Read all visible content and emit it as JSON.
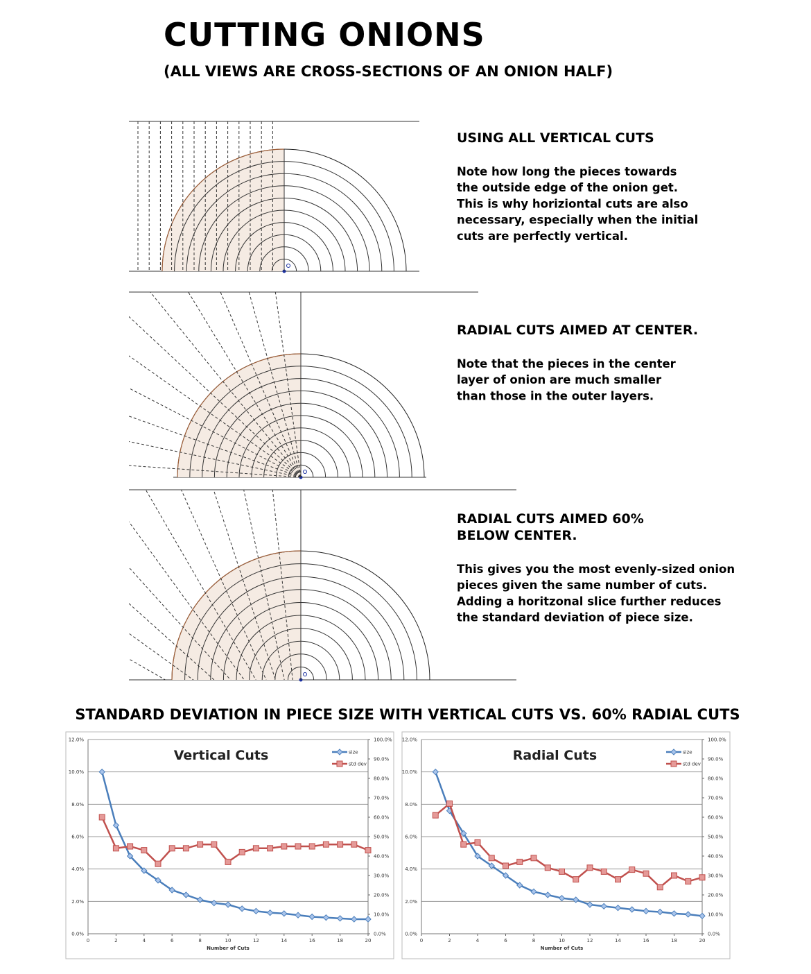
{
  "header": {
    "title": "CUTTING ONIONS",
    "subtitle": "(ALL VIEWS ARE CROSS-SECTIONS OF AN ONION HALF)"
  },
  "sections": [
    {
      "heading": [
        "USING ALL VERTICAL CUTS"
      ],
      "lines": [
        "Note how long the pieces towards",
        "the outside edge of the onion get.",
        "This is why horiziontal cuts are also",
        "necessary, especially when the initial",
        "cuts are perfectly vertical."
      ]
    },
    {
      "heading": [
        "RADIAL CUTS AIMED AT CENTER."
      ],
      "lines": [
        "Note that the pieces in the center",
        "layer of onion are much smaller",
        "than those in the outer layers."
      ]
    },
    {
      "heading": [
        "RADIAL CUTS AIMED 60%",
        "BELOW CENTER."
      ],
      "lines": [
        "This gives you the most evenly-sized onion",
        "pieces given the same number of cuts.",
        "Adding a horitzonal slice further reduces",
        "the standard deviation of piece size."
      ]
    }
  ],
  "charts_title": "STANDARD DEVIATION IN PIECE SIZE WITH VERTICAL CUTS VS. 60% RADIAL CUTS",
  "chart_data": [
    {
      "type": "line",
      "title": "Vertical Cuts",
      "x_label": "Number of Cuts",
      "x": [
        1,
        2,
        3,
        4,
        5,
        6,
        7,
        8,
        9,
        10,
        11,
        12,
        13,
        14,
        15,
        16,
        17,
        18,
        19,
        20
      ],
      "series": [
        {
          "name": "size",
          "color": "#4a7ebb",
          "marker": "diamond",
          "values": [
            10.0,
            6.7,
            4.8,
            3.9,
            3.3,
            2.7,
            2.4,
            2.1,
            1.9,
            1.8,
            1.55,
            1.4,
            1.3,
            1.25,
            1.15,
            1.05,
            1.0,
            0.95,
            0.9,
            0.9
          ]
        },
        {
          "name": "std dev",
          "color": "#c0504d",
          "marker": "square",
          "axis": "y2",
          "values": [
            60,
            44,
            45,
            43,
            36,
            44,
            44,
            46,
            46,
            37,
            42,
            44,
            44,
            45,
            45,
            45,
            46,
            46,
            46,
            43
          ]
        }
      ],
      "xlim": [
        0,
        20
      ],
      "xticks": [
        0,
        2,
        4,
        6,
        8,
        10,
        12,
        14,
        16,
        18,
        20
      ],
      "ylim": [
        0,
        12
      ],
      "yticks": [
        {
          "value": 0,
          "label": "0.0%"
        },
        {
          "value": 2,
          "label": "2.0%"
        },
        {
          "value": 4,
          "label": "4.0%"
        },
        {
          "value": 6,
          "label": "6.0%"
        },
        {
          "value": 8,
          "label": "8.0%"
        },
        {
          "value": 10,
          "label": "10.0%"
        },
        {
          "value": 12,
          "label": "12.0%"
        }
      ],
      "y2lim": [
        0,
        100
      ],
      "y2ticks": [
        {
          "value": 0,
          "label": "0.0%"
        },
        {
          "value": 10,
          "label": "10.0%"
        },
        {
          "value": 20,
          "label": "20.0%"
        },
        {
          "value": 30,
          "label": "30.0%"
        },
        {
          "value": 40,
          "label": "40.0%"
        },
        {
          "value": 50,
          "label": "50.0%"
        },
        {
          "value": 60,
          "label": "60.0%"
        },
        {
          "value": 70,
          "label": "70.0%"
        },
        {
          "value": 80,
          "label": "80.0%"
        },
        {
          "value": 90,
          "label": "90.0%"
        },
        {
          "value": 100,
          "label": "100.0%"
        }
      ],
      "grid": true,
      "legend": "top-right"
    },
    {
      "type": "line",
      "title": "Radial Cuts",
      "x_label": "Number of Cuts",
      "x": [
        1,
        2,
        3,
        4,
        5,
        6,
        7,
        8,
        9,
        10,
        11,
        12,
        13,
        14,
        15,
        16,
        17,
        18,
        19,
        20
      ],
      "series": [
        {
          "name": "size",
          "color": "#4a7ebb",
          "marker": "diamond",
          "values": [
            10.0,
            7.6,
            6.2,
            4.8,
            4.2,
            3.6,
            3.0,
            2.6,
            2.4,
            2.2,
            2.1,
            1.8,
            1.7,
            1.6,
            1.5,
            1.4,
            1.35,
            1.25,
            1.2,
            1.1
          ]
        },
        {
          "name": "std dev",
          "color": "#c0504d",
          "marker": "square",
          "axis": "y2",
          "values": [
            61,
            67,
            46,
            47,
            39,
            35,
            37,
            39,
            34,
            32,
            28,
            34,
            32,
            28,
            33,
            31,
            24,
            30,
            27,
            29
          ]
        }
      ],
      "xlim": [
        0,
        20
      ],
      "xticks": [
        0,
        2,
        4,
        6,
        8,
        10,
        12,
        14,
        16,
        18,
        20
      ],
      "ylim": [
        0,
        12
      ],
      "yticks": [
        {
          "value": 0,
          "label": "0.0%"
        },
        {
          "value": 2,
          "label": "2.0%"
        },
        {
          "value": 4,
          "label": "4.0%"
        },
        {
          "value": 6,
          "label": "6.0%"
        },
        {
          "value": 8,
          "label": "8.0%"
        },
        {
          "value": 10,
          "label": "10.0%"
        },
        {
          "value": 12,
          "label": "12.0%"
        }
      ],
      "y2lim": [
        0,
        100
      ],
      "y2ticks": [
        {
          "value": 0,
          "label": "0.0%"
        },
        {
          "value": 10,
          "label": "10.0%"
        },
        {
          "value": 20,
          "label": "20.0%"
        },
        {
          "value": 30,
          "label": "30.0%"
        },
        {
          "value": 40,
          "label": "40.0%"
        },
        {
          "value": 50,
          "label": "50.0%"
        },
        {
          "value": 60,
          "label": "60.0%"
        },
        {
          "value": 70,
          "label": "70.0%"
        },
        {
          "value": 80,
          "label": "80.0%"
        },
        {
          "value": 90,
          "label": "90.0%"
        },
        {
          "value": 100,
          "label": "100.0%"
        }
      ],
      "grid": true,
      "legend": "top-right"
    }
  ]
}
